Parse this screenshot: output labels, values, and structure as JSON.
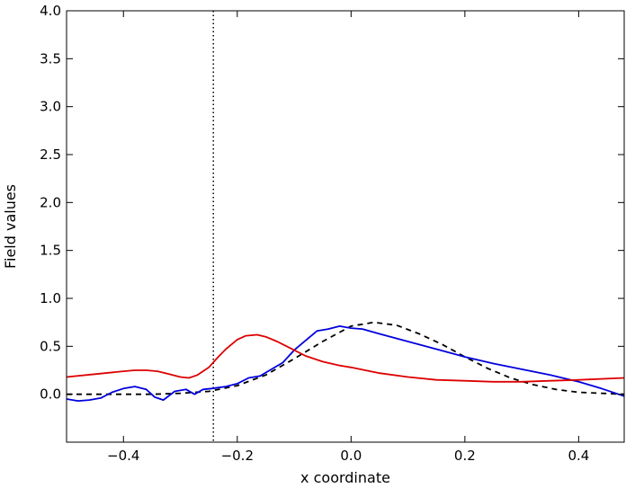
{
  "chart_data": {
    "type": "line",
    "title": "",
    "xlabel": "x coordinate",
    "ylabel": "Field values",
    "xlim": [
      -0.5,
      0.48
    ],
    "ylim": [
      -0.5,
      4.0
    ],
    "xticks": [
      -0.4,
      -0.2,
      0.0,
      0.2,
      0.4
    ],
    "xtick_labels": [
      "−0.4",
      "−0.2",
      "0.0",
      "0.2",
      "0.4"
    ],
    "yticks": [
      0.0,
      0.5,
      1.0,
      1.5,
      2.0,
      2.5,
      3.0,
      3.5,
      4.0
    ],
    "ytick_labels": [
      "0.0",
      "0.5",
      "1.0",
      "1.5",
      "2.0",
      "2.5",
      "3.0",
      "3.5",
      "4.0"
    ],
    "grid": false,
    "legend": "none",
    "vline": {
      "x": -0.242,
      "style": "dotted",
      "color": "#000000"
    },
    "series": [
      {
        "color": "#000000",
        "style": "dashed",
        "x": [
          -0.5,
          -0.45,
          -0.4,
          -0.35,
          -0.3,
          -0.25,
          -0.2,
          -0.15,
          -0.1,
          -0.05,
          0.0,
          0.04,
          0.08,
          0.12,
          0.16,
          0.2,
          0.24,
          0.28,
          0.32,
          0.36,
          0.4,
          0.44,
          0.48
        ],
        "y": [
          0.0,
          0.0,
          0.0,
          0.0,
          0.01,
          0.03,
          0.09,
          0.2,
          0.37,
          0.55,
          0.71,
          0.75,
          0.72,
          0.63,
          0.52,
          0.39,
          0.27,
          0.17,
          0.1,
          0.05,
          0.02,
          0.01,
          0.0
        ]
      },
      {
        "color": "#0000dd",
        "style": "solid",
        "x": [
          -0.5,
          -0.48,
          -0.46,
          -0.44,
          -0.42,
          -0.4,
          -0.38,
          -0.36,
          -0.345,
          -0.33,
          -0.31,
          -0.29,
          -0.275,
          -0.26,
          -0.245,
          -0.22,
          -0.2,
          -0.18,
          -0.16,
          -0.14,
          -0.12,
          -0.1,
          -0.08,
          -0.06,
          -0.04,
          -0.02,
          0.0,
          0.02,
          0.05,
          0.1,
          0.15,
          0.2,
          0.25,
          0.3,
          0.35,
          0.4,
          0.44,
          0.48
        ],
        "y": [
          -0.05,
          -0.07,
          -0.06,
          -0.04,
          0.02,
          0.06,
          0.08,
          0.05,
          -0.03,
          -0.06,
          0.03,
          0.05,
          0.0,
          0.05,
          0.06,
          0.08,
          0.11,
          0.17,
          0.19,
          0.26,
          0.33,
          0.46,
          0.56,
          0.66,
          0.68,
          0.71,
          0.69,
          0.68,
          0.63,
          0.55,
          0.47,
          0.39,
          0.32,
          0.26,
          0.2,
          0.13,
          0.06,
          -0.02
        ]
      },
      {
        "color": "#dd0000",
        "style": "solid",
        "x": [
          -0.5,
          -0.45,
          -0.4,
          -0.38,
          -0.36,
          -0.34,
          -0.32,
          -0.3,
          -0.285,
          -0.27,
          -0.25,
          -0.235,
          -0.22,
          -0.2,
          -0.185,
          -0.165,
          -0.15,
          -0.13,
          -0.1,
          -0.08,
          -0.05,
          -0.02,
          0.0,
          0.05,
          0.1,
          0.15,
          0.2,
          0.25,
          0.3,
          0.35,
          0.4,
          0.48
        ],
        "y": [
          0.18,
          0.21,
          0.24,
          0.25,
          0.25,
          0.24,
          0.21,
          0.18,
          0.17,
          0.2,
          0.28,
          0.38,
          0.47,
          0.57,
          0.61,
          0.62,
          0.6,
          0.55,
          0.46,
          0.4,
          0.34,
          0.3,
          0.28,
          0.22,
          0.18,
          0.15,
          0.14,
          0.13,
          0.13,
          0.14,
          0.15,
          0.17
        ]
      }
    ]
  }
}
